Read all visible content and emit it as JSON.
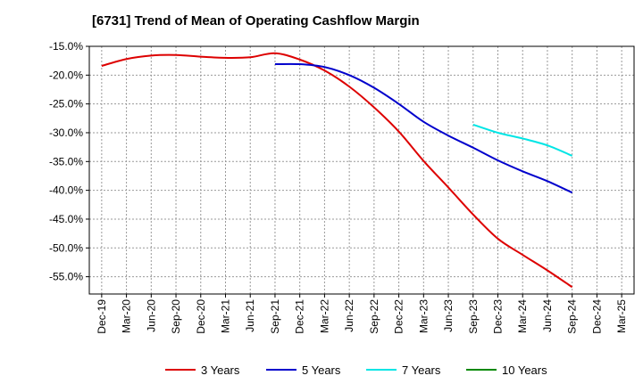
{
  "chart_data": {
    "type": "line",
    "title": "[6731]  Trend of Mean of Operating Cashflow Margin",
    "xlabel": "",
    "ylabel": "",
    "ylim": [
      -58,
      -15
    ],
    "y_ticks": [
      -15,
      -20,
      -25,
      -30,
      -35,
      -40,
      -45,
      -50,
      -55
    ],
    "y_tick_labels": [
      "-15.0%",
      "-20.0%",
      "-25.0%",
      "-30.0%",
      "-35.0%",
      "-40.0%",
      "-45.0%",
      "-50.0%",
      "-55.0%"
    ],
    "categories": [
      "Dec-19",
      "Mar-20",
      "Jun-20",
      "Sep-20",
      "Dec-20",
      "Mar-21",
      "Jun-21",
      "Sep-21",
      "Dec-21",
      "Mar-22",
      "Jun-22",
      "Sep-22",
      "Dec-22",
      "Mar-23",
      "Jun-23",
      "Sep-23",
      "Dec-23",
      "Mar-24",
      "Jun-24",
      "Sep-24",
      "Dec-24",
      "Mar-25"
    ],
    "grid": true,
    "legend_position": "bottom",
    "series": [
      {
        "name": "3 Years",
        "color": "#dd0000",
        "values": [
          -18.4,
          -17.2,
          -16.6,
          -16.5,
          -16.8,
          -17.0,
          -16.9,
          -16.2,
          -17.3,
          -19.2,
          -22.0,
          -25.6,
          -29.8,
          -34.9,
          -39.5,
          -44.2,
          -48.4,
          -51.2,
          -53.9,
          -56.8,
          null,
          null
        ]
      },
      {
        "name": "5 Years",
        "color": "#0000cc",
        "values": [
          null,
          null,
          null,
          null,
          null,
          null,
          null,
          -18.1,
          -18.1,
          -18.6,
          -20.0,
          -22.2,
          -25.0,
          -28.1,
          -30.5,
          -32.6,
          -34.8,
          -36.7,
          -38.4,
          -40.4,
          null,
          null
        ]
      },
      {
        "name": "7 Years",
        "color": "#00e5e5",
        "values": [
          null,
          null,
          null,
          null,
          null,
          null,
          null,
          null,
          null,
          null,
          null,
          null,
          null,
          null,
          null,
          -28.6,
          -30.0,
          -31.0,
          -32.2,
          -34.0,
          null,
          null
        ]
      },
      {
        "name": "10 Years",
        "color": "#008800",
        "values": [
          null,
          null,
          null,
          null,
          null,
          null,
          null,
          null,
          null,
          null,
          null,
          null,
          null,
          null,
          null,
          null,
          null,
          null,
          null,
          null,
          null,
          null
        ]
      }
    ]
  }
}
